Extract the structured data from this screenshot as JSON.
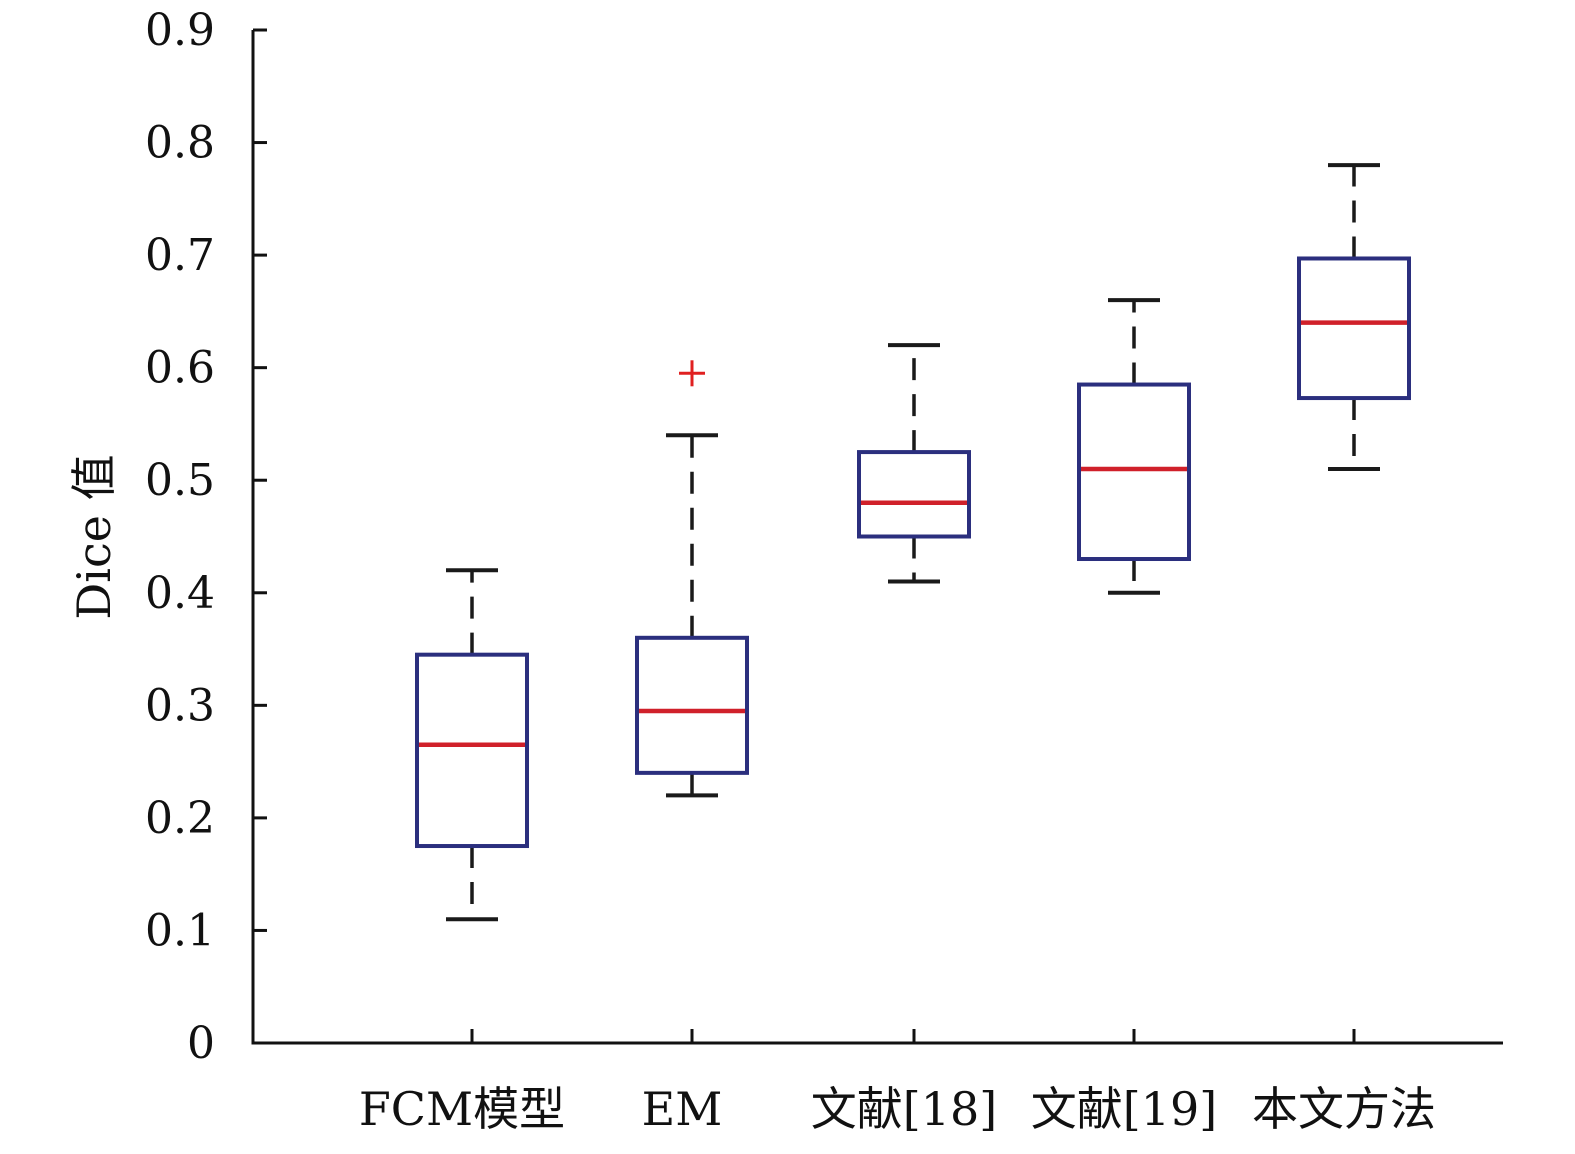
{
  "chart_data": {
    "type": "box",
    "ylabel": "Dice 值",
    "xlabel": "",
    "ylim": [
      0,
      0.9
    ],
    "yticks": [
      "0",
      "0.1",
      "0.2",
      "0.3",
      "0.4",
      "0.5",
      "0.6",
      "0.7",
      "0.8",
      "0.9"
    ],
    "categories": [
      "FCM模型",
      "EM",
      "文献[18]",
      "文献[19]",
      "本文方法"
    ],
    "boxes": [
      {
        "category": "FCM模型",
        "whisker_low": 0.11,
        "q1": 0.175,
        "median": 0.265,
        "q3": 0.345,
        "whisker_high": 0.42,
        "outliers": []
      },
      {
        "category": "EM",
        "whisker_low": 0.22,
        "q1": 0.24,
        "median": 0.295,
        "q3": 0.36,
        "whisker_high": 0.54,
        "outliers": [
          0.595
        ]
      },
      {
        "category": "文献[18]",
        "whisker_low": 0.41,
        "q1": 0.45,
        "median": 0.48,
        "q3": 0.525,
        "whisker_high": 0.62,
        "outliers": []
      },
      {
        "category": "文献[19]",
        "whisker_low": 0.4,
        "q1": 0.43,
        "median": 0.51,
        "q3": 0.585,
        "whisker_high": 0.66,
        "outliers": []
      },
      {
        "category": "本文方法",
        "whisker_low": 0.51,
        "q1": 0.573,
        "median": 0.64,
        "q3": 0.697,
        "whisker_high": 0.78,
        "outliers": []
      }
    ],
    "colors": {
      "box": "#2b2f7e",
      "median": "#d0202a",
      "whisker": "#1a1a1a",
      "outlier": "#e02020",
      "axis": "#111111"
    },
    "grid": false
  }
}
